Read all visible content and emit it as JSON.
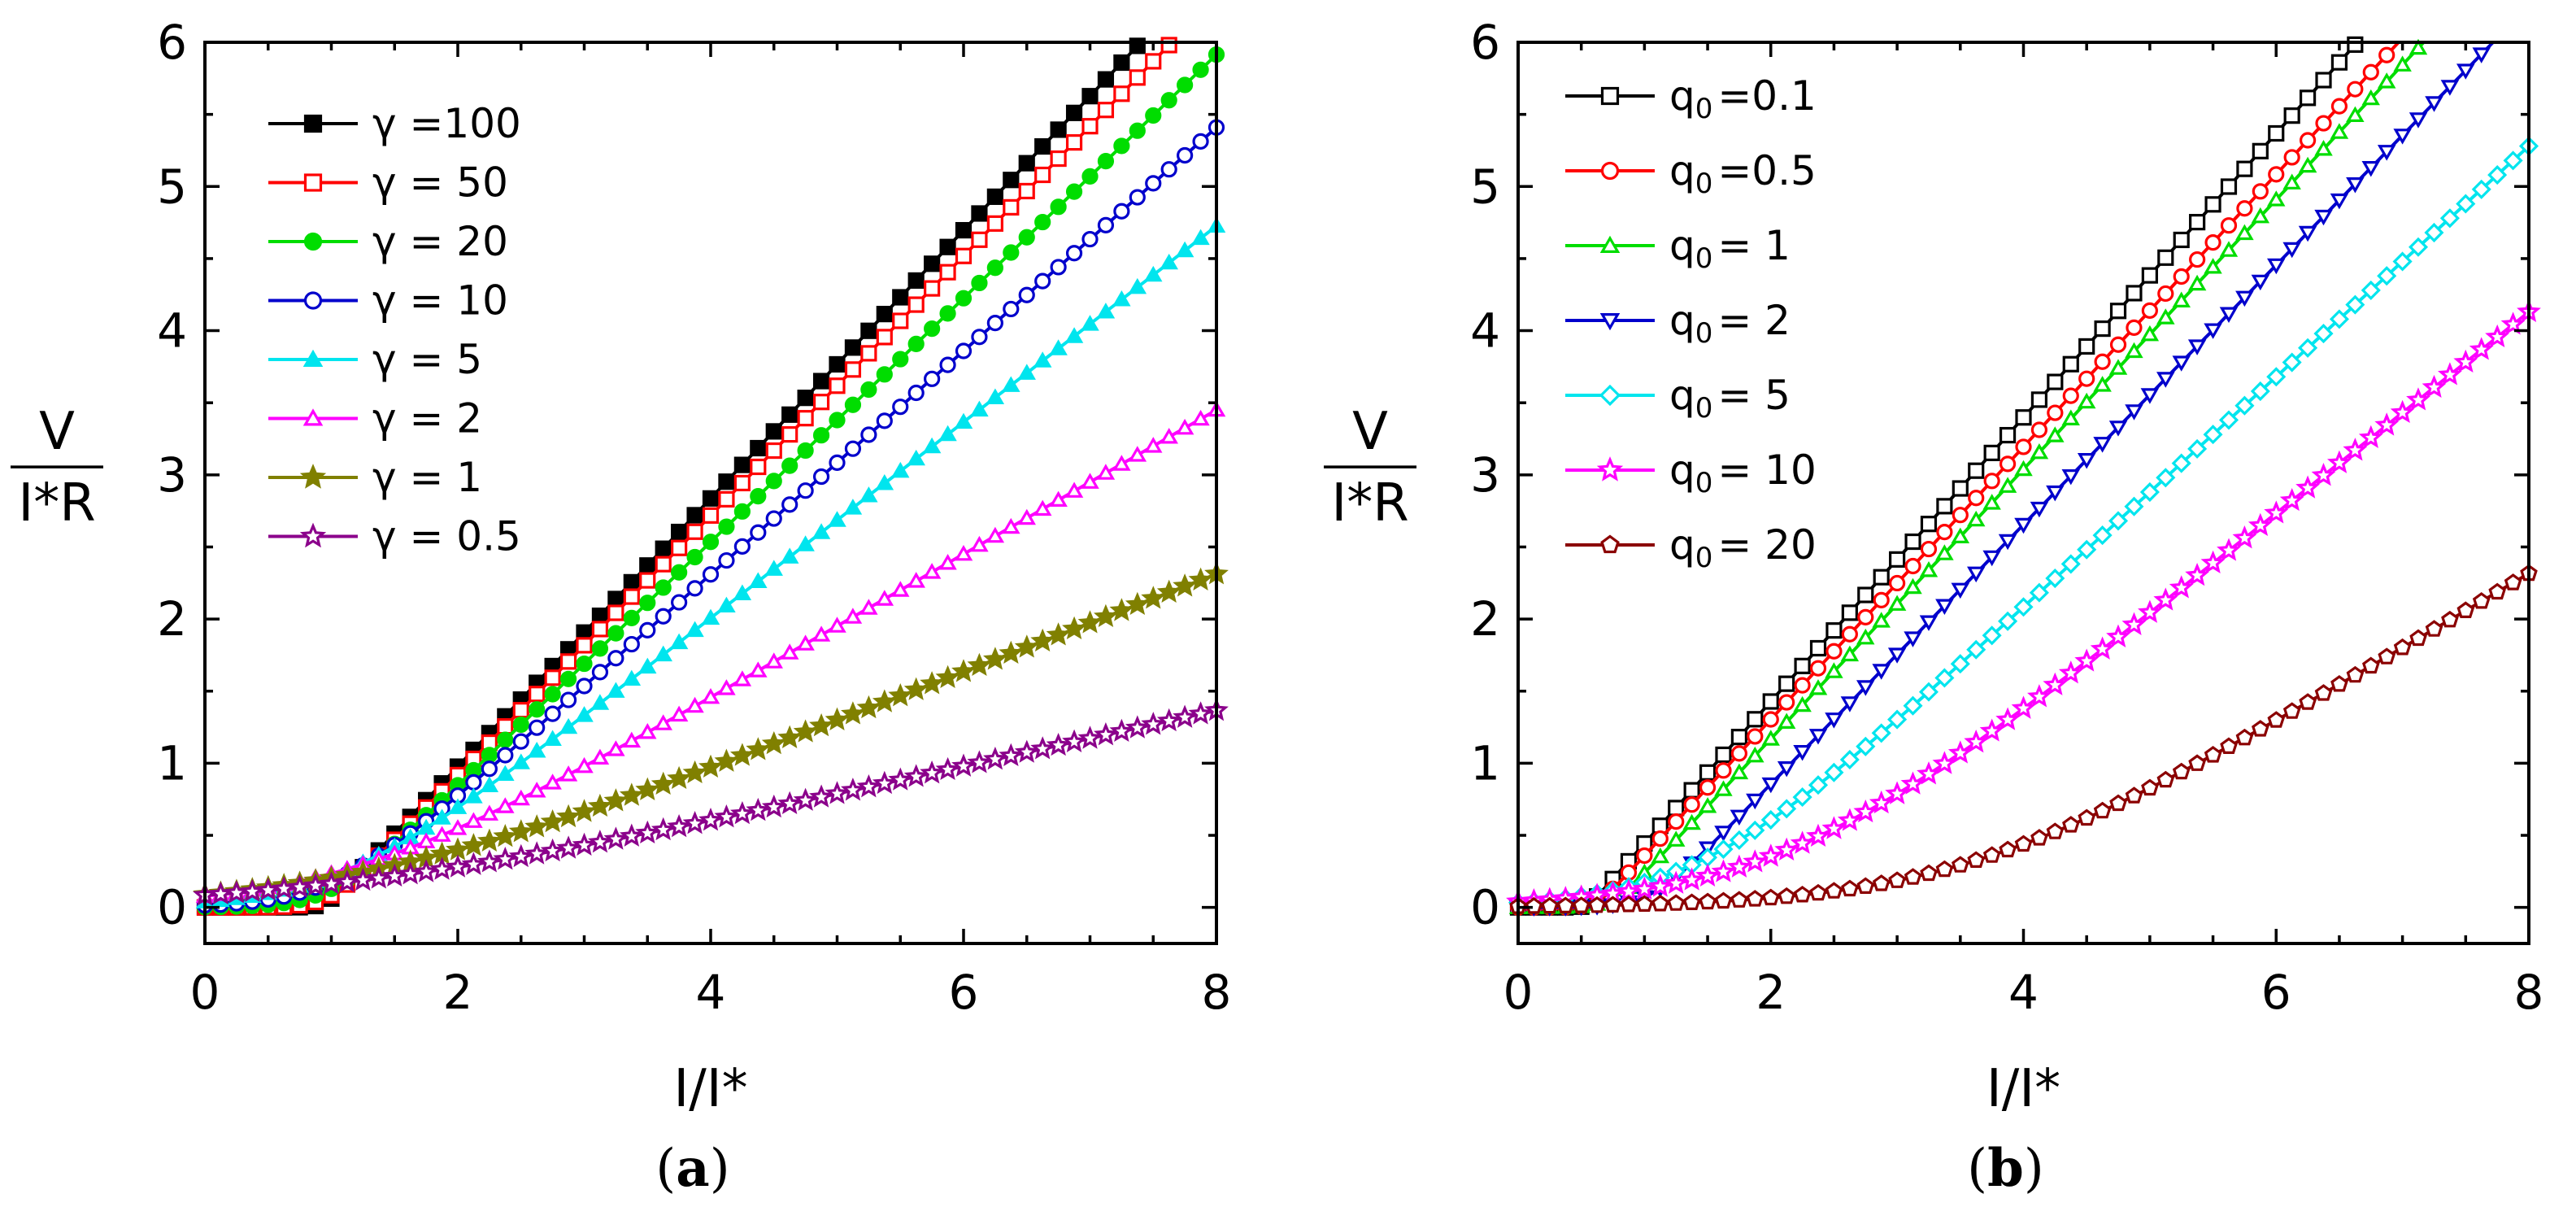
{
  "chart_data": [
    {
      "type": "line",
      "panel": "a",
      "panel_letter": "a",
      "panel_paren_open": "(",
      "panel_paren_close": ")",
      "xlabel": "I/I*",
      "ylabel_num": "V",
      "ylabel_den": "I*R",
      "xlim": [
        0,
        8
      ],
      "ylim": [
        -0.25,
        6
      ],
      "xticks": [
        "0",
        "2",
        "4",
        "6",
        "8"
      ],
      "yticks": [
        "0",
        "1",
        "2",
        "3",
        "4",
        "5",
        "6"
      ],
      "legend_position": "top-left",
      "series": [
        {
          "name": "γ =100",
          "color": "#000000",
          "marker": "square-filled",
          "param": 100
        },
        {
          "name": "γ = 50",
          "color": "#ff0000",
          "marker": "square-open",
          "param": 50
        },
        {
          "name": "γ = 20",
          "color": "#00dd00",
          "marker": "circle-filled",
          "param": 20
        },
        {
          "name": "γ = 10",
          "color": "#0000cc",
          "marker": "circle-open",
          "param": 10
        },
        {
          "name": "γ =  5",
          "color": "#00e5ee",
          "marker": "triangle-filled",
          "param": 5
        },
        {
          "name": "γ =  2",
          "color": "#ff00ff",
          "marker": "triangle-open",
          "param": 2
        },
        {
          "name": "γ =  1",
          "color": "#808000",
          "marker": "star-filled",
          "param": 1
        },
        {
          "name": "γ = 0.5",
          "color": "#8b008b",
          "marker": "star-open",
          "param": 0.5
        }
      ]
    },
    {
      "type": "line",
      "panel": "b",
      "panel_letter": "b",
      "panel_paren_open": "(",
      "panel_paren_close": ")",
      "xlabel": "I/I*",
      "ylabel_num": "V",
      "ylabel_den": "I*R",
      "xlim": [
        0,
        8
      ],
      "ylim": [
        -0.25,
        6
      ],
      "xticks": [
        "0",
        "2",
        "4",
        "6",
        "8"
      ],
      "yticks": [
        "0",
        "1",
        "2",
        "3",
        "4",
        "5",
        "6"
      ],
      "legend_position": "top-left",
      "series": [
        {
          "name": "q",
          "sub": "0",
          "value_text": "=0.1",
          "color": "#000000",
          "marker": "square-open",
          "param": 0.1
        },
        {
          "name": "q",
          "sub": "0",
          "value_text": "=0.5",
          "color": "#ff0000",
          "marker": "circle-open",
          "param": 0.5
        },
        {
          "name": "q",
          "sub": "0",
          "value_text": "=  1",
          "color": "#00dd00",
          "marker": "triangle-open",
          "param": 1
        },
        {
          "name": "q",
          "sub": "0",
          "value_text": "=  2",
          "color": "#0000cc",
          "marker": "triangle-down-open",
          "param": 2
        },
        {
          "name": "q",
          "sub": "0",
          "value_text": "=  5",
          "color": "#00e5ee",
          "marker": "diamond-open",
          "param": 5
        },
        {
          "name": "q",
          "sub": "0",
          "value_text": "= 10",
          "color": "#ff00ff",
          "marker": "star-open",
          "param": 10
        },
        {
          "name": "q",
          "sub": "0",
          "value_text": "= 20",
          "color": "#8b0000",
          "marker": "pentagon-open",
          "param": 20
        }
      ]
    }
  ]
}
